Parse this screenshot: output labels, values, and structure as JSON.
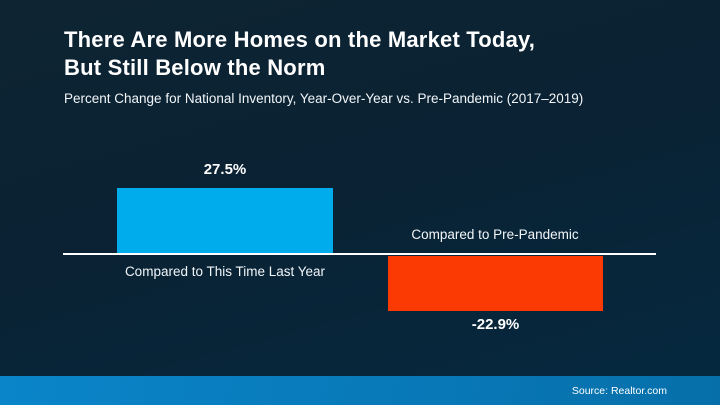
{
  "slide": {
    "title_line1": "There Are More Homes on the Market Today,",
    "title_line2": "But Still Below the Norm",
    "subtitle": "Percent Change for National Inventory, Year-Over-Year vs. Pre-Pandemic (2017–2019)",
    "source": "Source: Realtor.com"
  },
  "colors": {
    "background_top": "#0e2433",
    "background_bottom": "#052940",
    "bar_positive": "#00acec",
    "bar_negative": "#fb3a03",
    "axis_line": "#ffffff",
    "footer_gradient_left": "#0a85c9",
    "footer_gradient_right": "#066fa9",
    "text": "#ffffff"
  },
  "chart_data": {
    "type": "bar",
    "title": "There Are More Homes on the Market Today, But Still Below the Norm",
    "subtitle": "Percent Change for National Inventory, Year-Over-Year vs. Pre-Pandemic (2017–2019)",
    "categories": [
      "Compared to This Time Last Year",
      "Compared to Pre-Pandemic"
    ],
    "values": [
      27.5,
      -22.9
    ],
    "value_labels": [
      "27.5%",
      "-22.9%"
    ],
    "series_colors": [
      "#00acec",
      "#fb3a03"
    ],
    "baseline": 0,
    "ylim": [
      -30,
      30
    ],
    "grid": false,
    "legend": false,
    "source": "Source: Realtor.com"
  }
}
